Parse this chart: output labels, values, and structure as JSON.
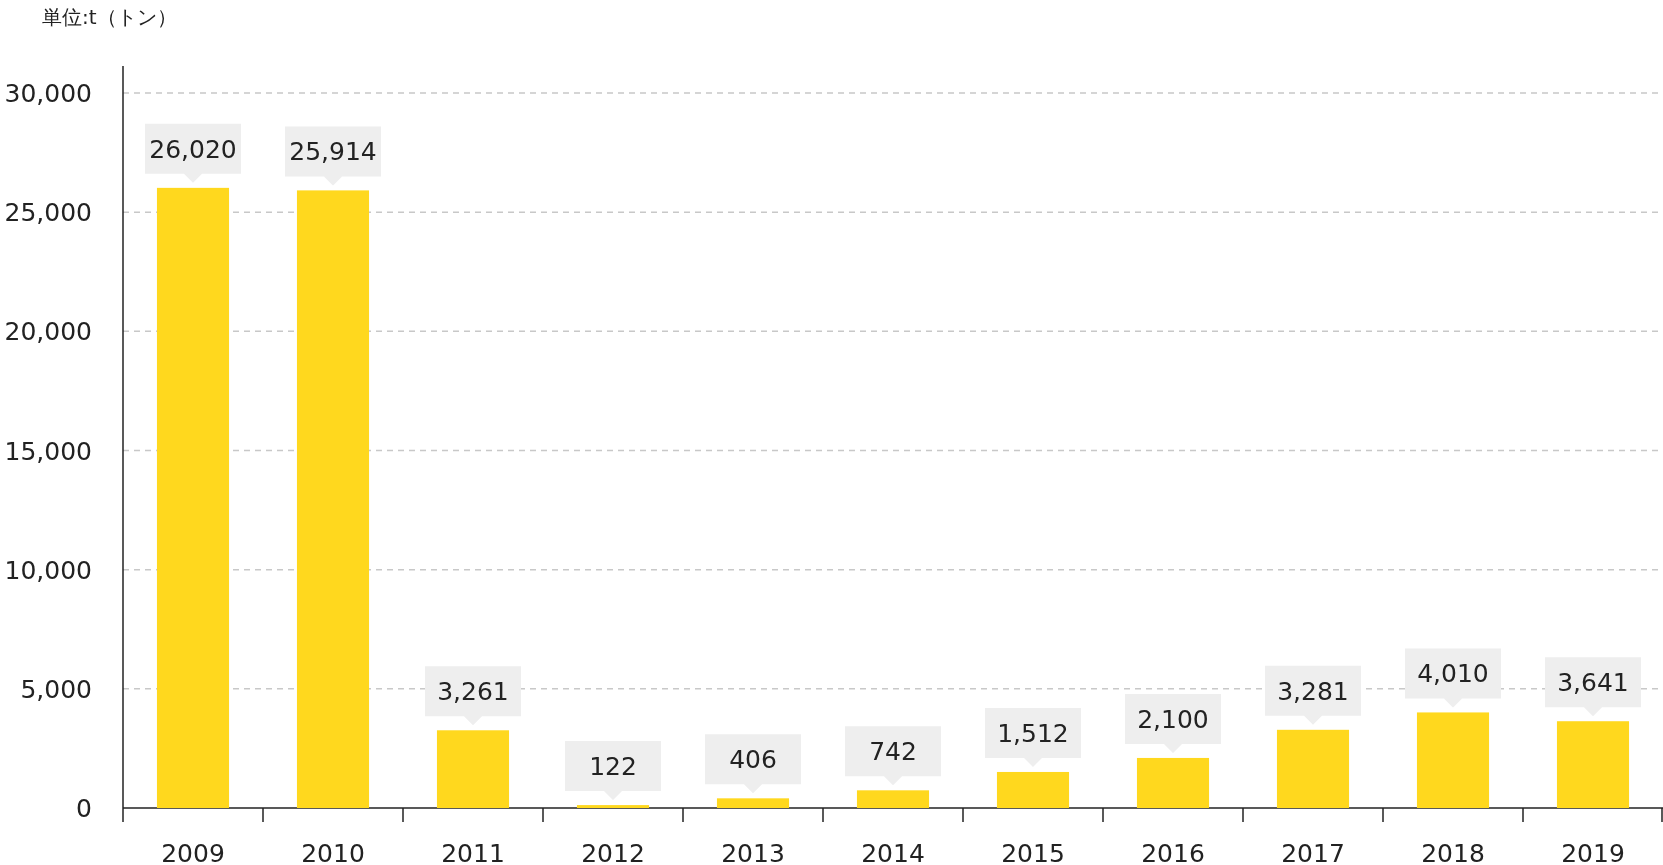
{
  "chart_data": {
    "type": "bar",
    "ylabel": "単位:t（トン）",
    "categories": [
      "2009",
      "2010",
      "2011",
      "2012",
      "2013",
      "2014",
      "2015",
      "2016",
      "2017",
      "2018",
      "2019"
    ],
    "values": [
      26020,
      25914,
      3261,
      122,
      406,
      742,
      1512,
      2100,
      3281,
      4010,
      3641
    ],
    "value_labels": [
      "26,020",
      "25,914",
      "3,261",
      "122",
      "406",
      "742",
      "1,512",
      "2,100",
      "3,281",
      "4,010",
      "3,641"
    ],
    "color": "#ffd81e",
    "ylim": [
      0,
      30000
    ],
    "yticks": [
      0,
      {
        "value": 5000,
        "label": "5,000"
      },
      {
        "value": 10000,
        "label": "10,000"
      },
      {
        "value": 15000,
        "label": "15,000"
      },
      {
        "value": 20000,
        "label": "20,000"
      },
      {
        "value": 25000,
        "label": "25,000"
      },
      {
        "value": 30000,
        "label": "30,000"
      }
    ],
    "grid": "y"
  }
}
